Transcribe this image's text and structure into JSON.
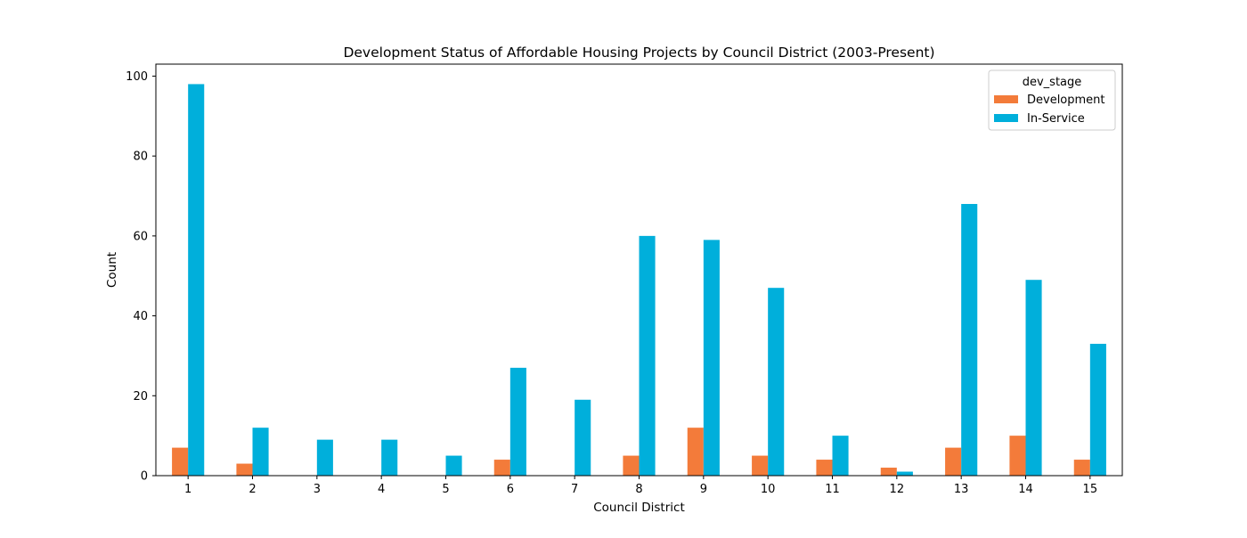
{
  "chart_data": {
    "type": "bar",
    "title": "Development Status of Affordable Housing Projects by Council District (2003-Present)",
    "xlabel": "Council District",
    "ylabel": "Count",
    "ylim": [
      0,
      103
    ],
    "yticks": [
      0,
      20,
      40,
      60,
      80,
      100
    ],
    "grid": false,
    "legend": {
      "title": "dev_stage",
      "placement": "top-right"
    },
    "categories": [
      "1",
      "2",
      "3",
      "4",
      "5",
      "6",
      "7",
      "8",
      "9",
      "10",
      "11",
      "12",
      "13",
      "14",
      "15"
    ],
    "series": [
      {
        "name": "Development",
        "color": "#f37b3a",
        "values": [
          7,
          3,
          0,
          0,
          0,
          4,
          0,
          5,
          12,
          5,
          4,
          2,
          7,
          10,
          4
        ]
      },
      {
        "name": "In-Service",
        "color": "#00afdb",
        "values": [
          98,
          12,
          9,
          9,
          5,
          27,
          19,
          60,
          59,
          47,
          10,
          1,
          68,
          49,
          33
        ]
      }
    ]
  }
}
